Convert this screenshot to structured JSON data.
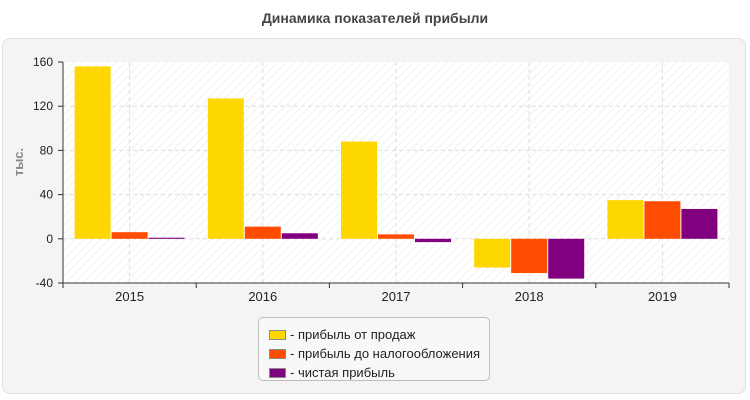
{
  "chart_data": {
    "type": "bar",
    "title": "Динамика показателей прибыли",
    "ylabel": "тыс.",
    "xlabel": "",
    "categories": [
      "2015",
      "2016",
      "2017",
      "2018",
      "2019"
    ],
    "ylim": [
      -40,
      160
    ],
    "yticks": [
      -40,
      0,
      40,
      80,
      120,
      160
    ],
    "grid": true,
    "legend_position": "bottom",
    "legend_prefix": "- ",
    "series": [
      {
        "name": "прибыль от продаж",
        "color": "#FFD700",
        "values": [
          156,
          127,
          88,
          -26,
          35
        ]
      },
      {
        "name": "прибыль до налогообложения",
        "color": "#FF4C00",
        "values": [
          6,
          11,
          4,
          -31,
          34
        ]
      },
      {
        "name": "чистая прибыль",
        "color": "#800080",
        "values": [
          1,
          5,
          -3,
          -36,
          27
        ]
      }
    ]
  }
}
